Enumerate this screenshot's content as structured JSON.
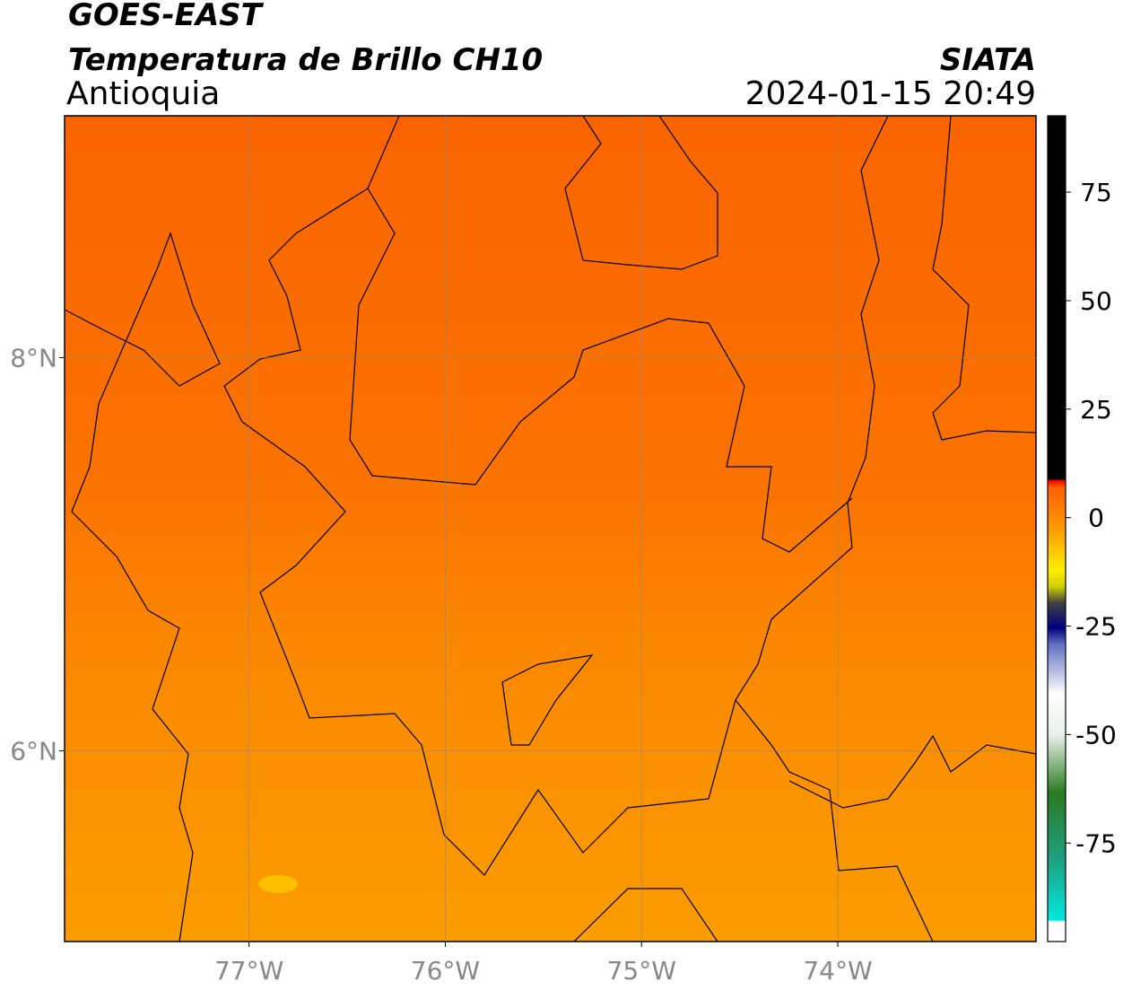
{
  "header": {
    "title": "GOES-EAST",
    "subtitle": "Temperatura de Brillo CH10",
    "region": "Antioquia",
    "source": "SIATA",
    "datetime": "2024-01-15 20:49"
  },
  "map": {
    "xlim": [
      -77.94,
      -72.99
    ],
    "ylim": [
      5.03,
      9.23
    ],
    "grid": true,
    "xticks": [
      {
        "value": -77,
        "label": "77°W"
      },
      {
        "value": -76,
        "label": "76°W"
      },
      {
        "value": -75,
        "label": "75°W"
      },
      {
        "value": -74,
        "label": "74°W"
      }
    ],
    "yticks": [
      {
        "value": 8,
        "label": "8°N"
      },
      {
        "value": 6,
        "label": "6°N"
      }
    ]
  },
  "colorbar": {
    "lim": [
      -97.7,
      92.6
    ],
    "ticks": [
      75,
      50,
      25,
      0,
      -25,
      -50,
      -75
    ]
  }
}
